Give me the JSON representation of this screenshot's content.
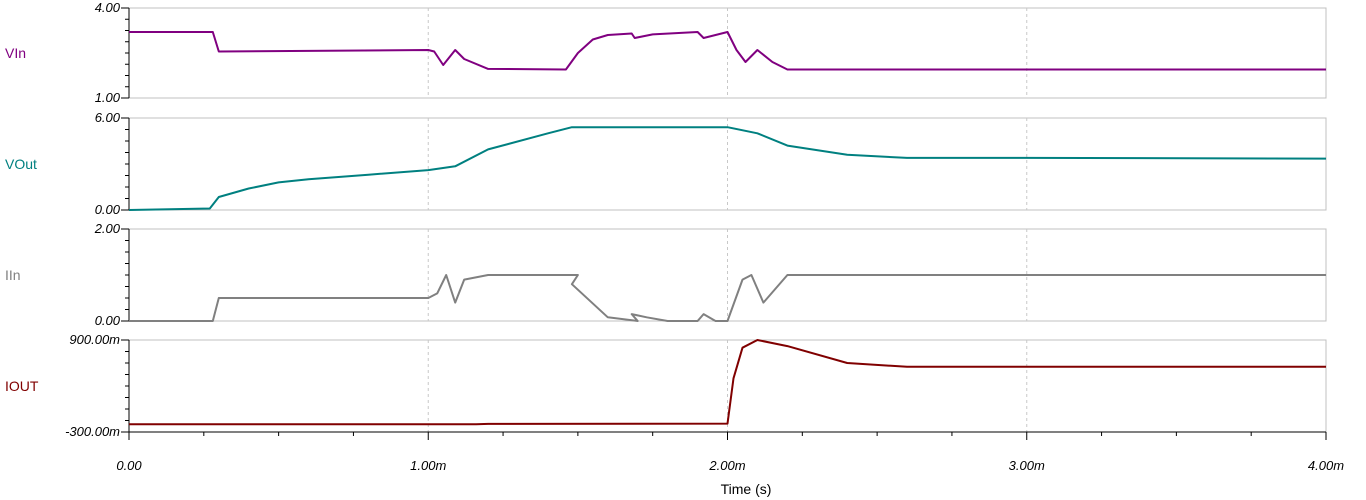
{
  "chart_data": {
    "type": "line",
    "xlabel": "Time (s)",
    "x_ticks": [
      "0.00",
      "1.00m",
      "2.00m",
      "3.00m",
      "4.00m"
    ],
    "x_tick_values": [
      0,
      0.001,
      0.002,
      0.003,
      0.004
    ],
    "xlim": [
      0,
      0.004
    ],
    "grid": true,
    "panels": [
      {
        "name": "VIn",
        "color": "#800080",
        "ylim": [
          1.0,
          4.0
        ],
        "y_tick_labels": [
          "4.00",
          "1.00"
        ],
        "x": [
          0,
          0.00028,
          0.0003,
          0.001,
          0.00102,
          0.00105,
          0.00109,
          0.00112,
          0.0012,
          0.00146,
          0.0015,
          0.00155,
          0.0016,
          0.00168,
          0.00169,
          0.00175,
          0.0019,
          0.00192,
          0.002,
          0.00203,
          0.00206,
          0.0021,
          0.00215,
          0.0022,
          0.004
        ],
        "values": [
          3.2,
          3.2,
          2.55,
          2.6,
          2.55,
          2.1,
          2.6,
          2.3,
          1.97,
          1.95,
          2.5,
          2.95,
          3.1,
          3.15,
          3.0,
          3.12,
          3.2,
          3.0,
          3.2,
          2.6,
          2.2,
          2.6,
          2.2,
          1.95,
          1.95
        ]
      },
      {
        "name": "VOut",
        "color": "#008080",
        "ylim": [
          0.0,
          6.0
        ],
        "y_tick_labels": [
          "6.00",
          "0.00"
        ],
        "x": [
          0,
          0.00027,
          0.0003,
          0.0004,
          0.0005,
          0.0006,
          0.0008,
          0.001,
          0.00109,
          0.0012,
          0.0014,
          0.00148,
          0.0018,
          0.002,
          0.0021,
          0.0022,
          0.0024,
          0.0026,
          0.003,
          0.004
        ],
        "values": [
          0,
          0.1,
          0.85,
          1.4,
          1.8,
          2.0,
          2.3,
          2.6,
          2.85,
          3.95,
          5.0,
          5.4,
          5.4,
          5.4,
          5.0,
          4.2,
          3.6,
          3.4,
          3.4,
          3.35
        ]
      },
      {
        "name": "IIn",
        "color": "#808080",
        "ylim": [
          0.0,
          2.0
        ],
        "y_tick_labels": [
          "2.00",
          "0.00"
        ],
        "x": [
          0,
          0.00028,
          0.0003,
          0.001,
          0.00103,
          0.00106,
          0.00109,
          0.00112,
          0.0012,
          0.0015,
          0.00148,
          0.0016,
          0.0017,
          0.00168,
          0.00173,
          0.0018,
          0.0019,
          0.00192,
          0.00196,
          0.002,
          0.00205,
          0.00208,
          0.00212,
          0.0022,
          0.004
        ],
        "values": [
          0.0,
          0.0,
          0.5,
          0.5,
          0.6,
          1.0,
          0.4,
          0.9,
          1.0,
          1.0,
          0.8,
          0.08,
          0.0,
          0.15,
          0.08,
          0.0,
          0.0,
          0.15,
          0.0,
          0.0,
          0.9,
          1.0,
          0.4,
          1.0,
          1.0
        ]
      },
      {
        "name": "IOUT",
        "color": "#800000",
        "ylim": [
          -0.3,
          0.9
        ],
        "y_tick_labels": [
          "900.00m",
          "-300.00m"
        ],
        "x": [
          0,
          0.00116,
          0.0012,
          0.002,
          0.00202,
          0.00205,
          0.0021,
          0.0022,
          0.0024,
          0.0026,
          0.0028,
          0.003,
          0.004
        ],
        "values": [
          -0.2,
          -0.2,
          -0.195,
          -0.19,
          0.4,
          0.8,
          0.9,
          0.82,
          0.6,
          0.55,
          0.55,
          0.55,
          0.55
        ]
      }
    ]
  }
}
